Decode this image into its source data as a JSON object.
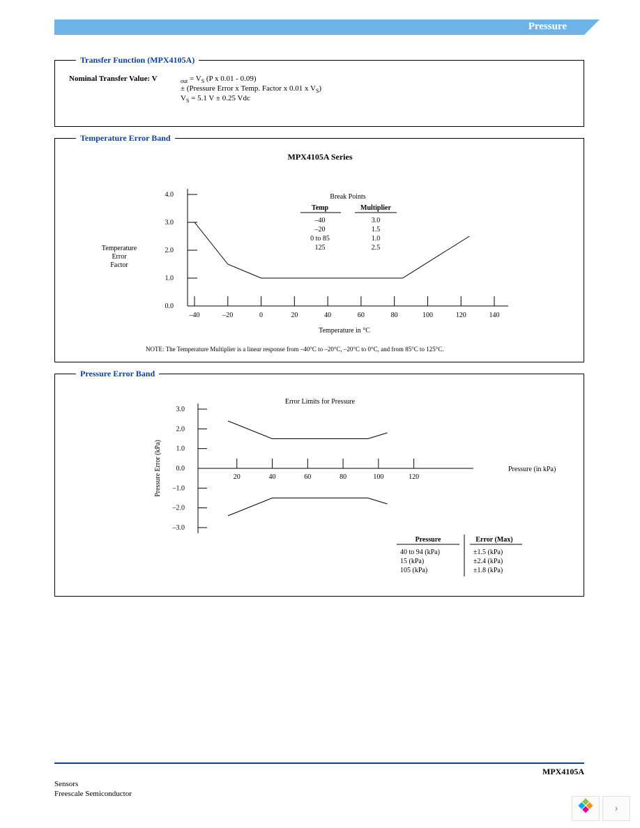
{
  "header": {
    "category": "Pressure"
  },
  "transfer_function": {
    "title": "Transfer Function (MPX4105A)",
    "label": "Nominal Transfer Value: V",
    "sub1": "out",
    "eq1_a": " = V",
    "eq1_sub": "S",
    "eq1_b": " (P x 0.01 - 0.09)",
    "eq2_a": "± (Pressure Error x Temp. Factor x 0.01 x V",
    "eq2_sub": "S",
    "eq2_b": ")",
    "eq3_a": "V",
    "eq3_sub": "S",
    "eq3_b": " = 5.1 V   ± 0.25 Vdc"
  },
  "temp_chart": {
    "panel_title": "Temperature Error Band",
    "chart_title": "MPX4105A Series",
    "y_label": "Temperature\nError\nFactor",
    "x_label": "Temperature in °C",
    "y_ticks": [
      "0.0",
      "1.0",
      "2.0",
      "3.0",
      "4.0"
    ],
    "y_values": [
      0,
      1,
      2,
      3,
      4
    ],
    "x_ticks": [
      "–40",
      "–20",
      "0",
      "20",
      "40",
      "60",
      "80",
      "100",
      "120",
      "140"
    ],
    "x_values": [
      -40,
      -20,
      0,
      20,
      40,
      60,
      80,
      100,
      120,
      140
    ],
    "ylim": [
      0,
      4
    ],
    "xlim": [
      -40,
      140
    ],
    "data": [
      [
        -40,
        3.0
      ],
      [
        -20,
        1.5
      ],
      [
        0,
        1.0
      ],
      [
        85,
        1.0
      ],
      [
        125,
        2.5
      ]
    ],
    "breakpoints_title": "Break Points",
    "bp_hdr_temp": "Temp",
    "bp_hdr_mult": "Multiplier",
    "bp_rows": [
      {
        "t": "–40",
        "m": "3.0"
      },
      {
        "t": "–20",
        "m": "1.5"
      },
      {
        "t": "0 to 85",
        "m": "1.0"
      },
      {
        "t": "125",
        "m": "2.5"
      }
    ],
    "note": "NOTE: The Temperature Multiplier is a linear response from –40°C to –20°C, –20°C to 0°C, and from 85°C to 125°C.",
    "axis_color": "#000000",
    "line_color": "#000000"
  },
  "press_chart": {
    "panel_title": "Pressure Error Band",
    "chart_title": "Error Limits for Pressure",
    "y_label": "Pressure Error (kPa)",
    "x_label": "Pressure (in kPa)",
    "y_ticks": [
      "–3.0",
      "–2.0",
      "–1.0",
      "0.0",
      "1.0",
      "2.0",
      "3.0"
    ],
    "y_values": [
      -3,
      -2,
      -1,
      0,
      1,
      2,
      3
    ],
    "x_ticks": [
      "20",
      "40",
      "60",
      "80",
      "100",
      "120"
    ],
    "x_values": [
      20,
      40,
      60,
      80,
      100,
      120
    ],
    "ylim": [
      -3,
      3
    ],
    "xlim": [
      0,
      130
    ],
    "upper": [
      [
        15,
        2.4
      ],
      [
        40,
        1.5
      ],
      [
        94,
        1.5
      ],
      [
        105,
        1.8
      ]
    ],
    "lower": [
      [
        15,
        -2.4
      ],
      [
        40,
        -1.5
      ],
      [
        94,
        -1.5
      ],
      [
        105,
        -1.8
      ]
    ],
    "tbl_hdr_p": "Pressure",
    "tbl_hdr_e": "Error (Max)",
    "tbl_rows": [
      {
        "p": "40 to 94 (kPa)",
        "e": "±1.5 (kPa)"
      },
      {
        "p": "15 (kPa)",
        "e": "±2.4 (kPa)"
      },
      {
        "p": "105 (kPa)",
        "e": "±1.8 (kPa)"
      }
    ]
  },
  "footer": {
    "part": "MPX4105A",
    "line1": "Sensors",
    "line2": "Freescale Semiconductor"
  },
  "logo_colors": [
    "#8cc63f",
    "#f7941e",
    "#00aeef",
    "#ec008c"
  ]
}
